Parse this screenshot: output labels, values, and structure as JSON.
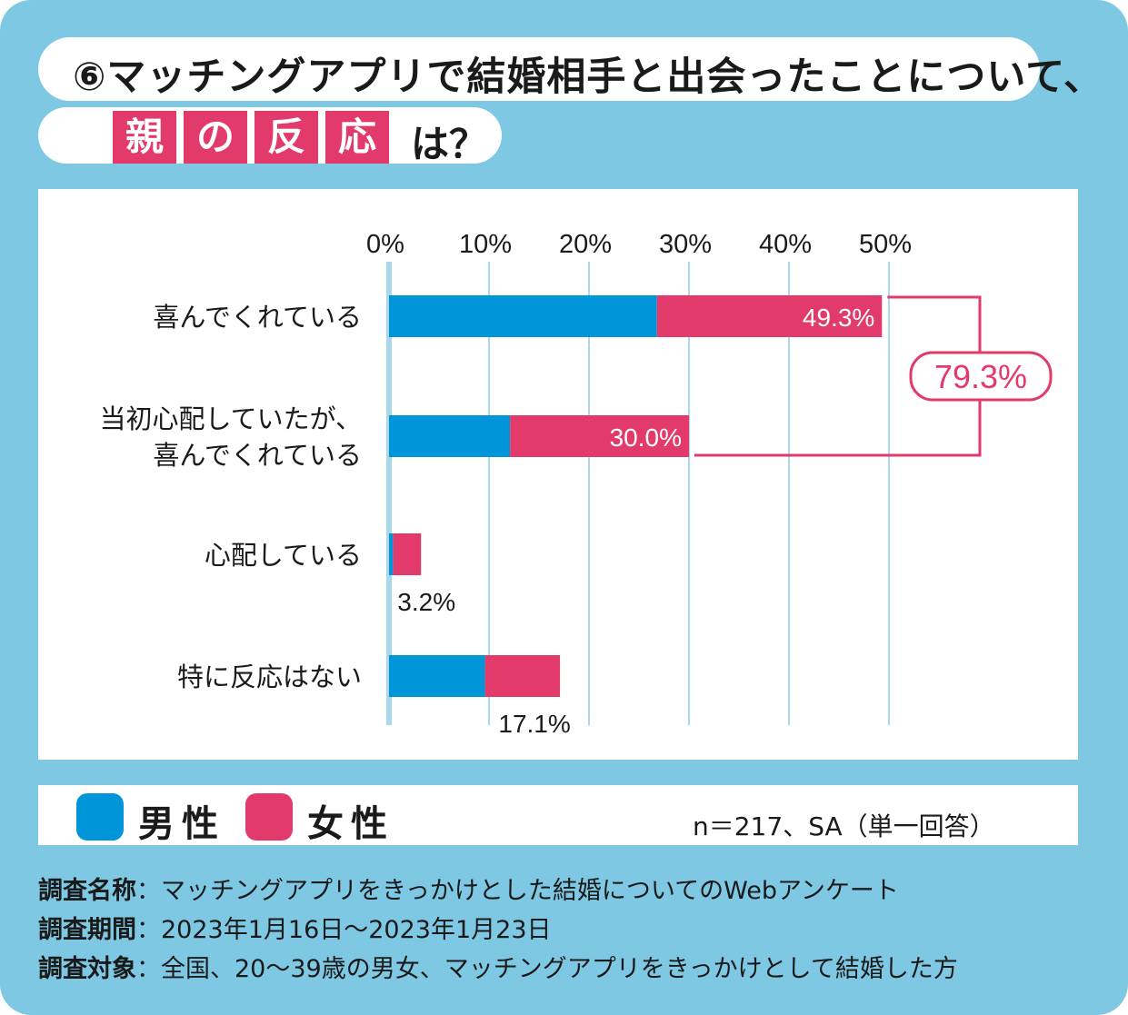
{
  "header": {
    "title_line1": "⑥マッチングアプリで結婚相手と出会ったことについて、",
    "title_boxed": [
      "親",
      "の",
      "反",
      "応"
    ],
    "title_tail": "は？"
  },
  "chart_data": {
    "type": "bar",
    "orientation": "horizontal",
    "stacked": true,
    "categories": [
      [
        "喜んでくれている"
      ],
      [
        "当初心配していたが、",
        "喜んでくれている"
      ],
      [
        "心配している"
      ],
      [
        "特に反応はない"
      ]
    ],
    "series": [
      {
        "name": "男性",
        "color": "#0095d9",
        "values": [
          26.8,
          12.1,
          0.4,
          9.6
        ]
      },
      {
        "name": "女性",
        "color": "#e23a6a",
        "values": [
          22.5,
          17.9,
          2.8,
          7.5
        ]
      }
    ],
    "total_labels": [
      "49.3%",
      "30.0%",
      "3.2%",
      "17.1%"
    ],
    "xaxis_ticks": [
      "0%",
      "10%",
      "20%",
      "30%",
      "40%",
      "50%"
    ],
    "xlim": [
      0,
      50
    ],
    "bracket_label": "79.3%",
    "bracket_rows": [
      0,
      1
    ]
  },
  "legend": {
    "male": "男性",
    "female": "女性",
    "male_color": "#0095d9",
    "female_color": "#e23a6a"
  },
  "note": "n＝217、SA（単一回答）",
  "survey": {
    "name_label": "調査名称",
    "name_value": "：マッチングアプリをきっかけとした結婚についてのWebアンケート",
    "period_label": "調査期間",
    "period_value": "：2023年1月16日〜2023年1月23日",
    "target_label": "調査対象",
    "target_value": "：全国、20〜39歳の男女、マッチングアプリをきっかけとして結婚した方"
  }
}
